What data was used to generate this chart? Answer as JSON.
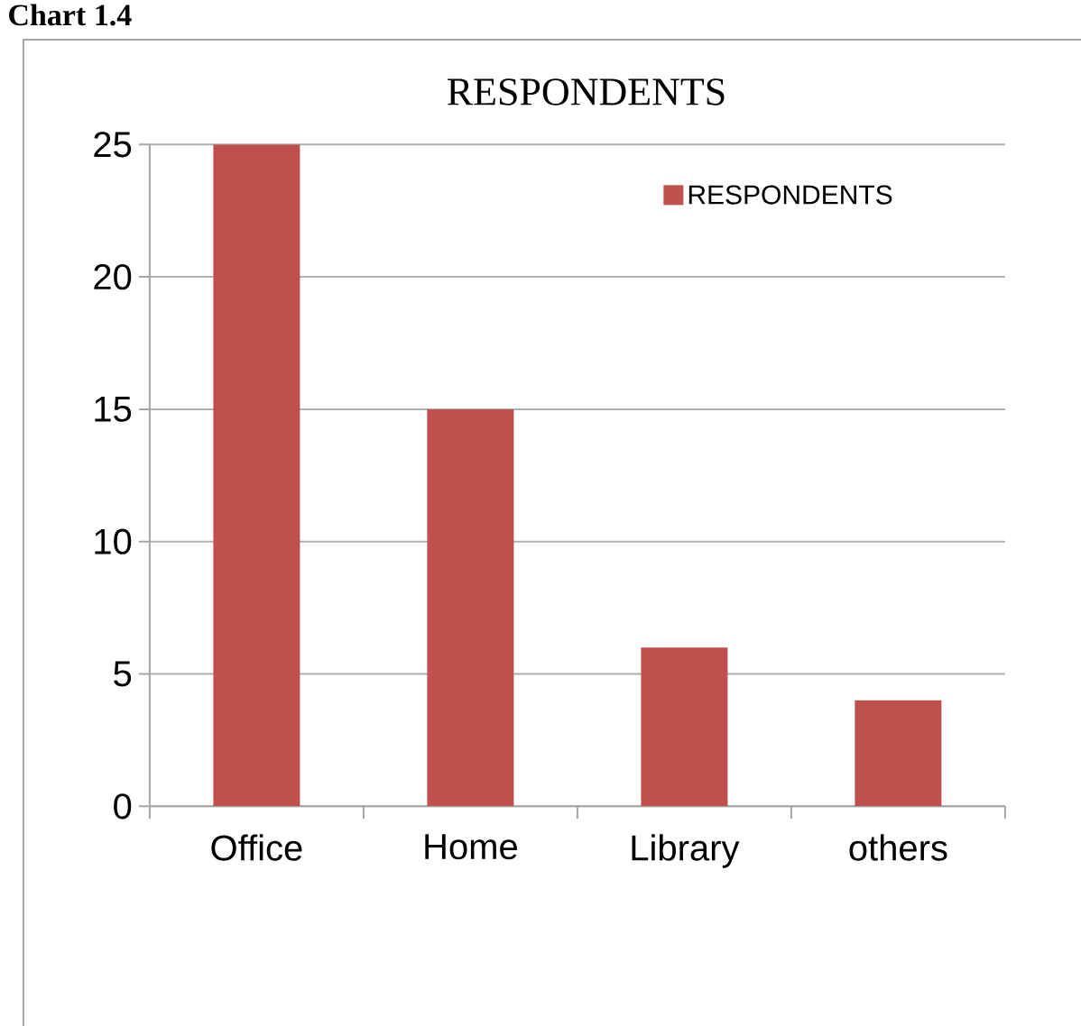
{
  "chart_data": {
    "type": "bar",
    "title": "RESPONDENTS",
    "annotations": [
      "Chart 1.4"
    ],
    "categories": [
      "Office",
      "Home",
      "Library",
      "others"
    ],
    "series": [
      {
        "name": "RESPONDENTS",
        "color": "#c0504d",
        "values": [
          25,
          15,
          6,
          4
        ]
      }
    ],
    "ylim": [
      0,
      25
    ],
    "yticks": [
      0,
      5,
      10,
      15,
      20,
      25
    ],
    "grid": "y",
    "legend": "top right"
  }
}
